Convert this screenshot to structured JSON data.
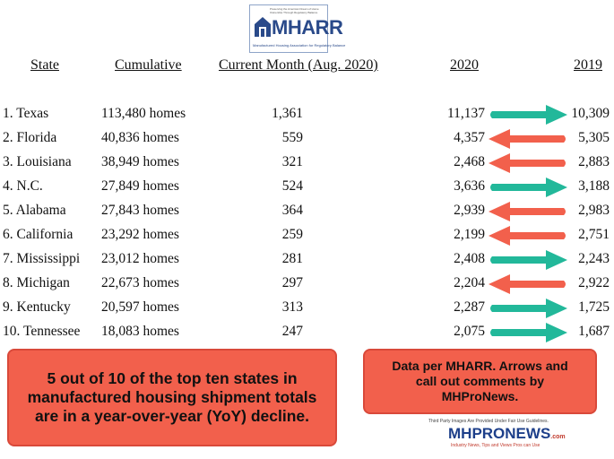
{
  "header": {
    "tagline": "Preserving the American Dream of Home Ownership Through Regulatory Balance",
    "logo": "MHARR",
    "org": "Manufactured Housing Association for Regulatory Balance"
  },
  "table": {
    "columns": [
      "State",
      "Cumulative",
      "Current Month (Aug. 2020)",
      "2020",
      "2019"
    ],
    "rows": [
      [
        "1. Texas",
        "113,480 homes",
        "1,361",
        "11,137",
        "10,309"
      ],
      [
        "2. Florida",
        "40,836 homes",
        "559",
        "4,357",
        "5,305"
      ],
      [
        "3. Louisiana",
        "38,949 homes",
        "321",
        "2,468",
        "2,883"
      ],
      [
        "4. N.C.",
        "27,849 homes",
        "524",
        "3,636",
        "3,188"
      ],
      [
        "5. Alabama",
        "27,843 homes",
        "364",
        "2,939",
        "2,983"
      ],
      [
        "6. California",
        "23,292 homes",
        "259",
        "2,199",
        "2,751"
      ],
      [
        "7. Mississippi",
        "23,012 homes",
        "281",
        "2,408",
        "2,243"
      ],
      [
        "8. Michigan",
        "22,673 homes",
        "297",
        "2,204",
        "2,922"
      ],
      [
        "9. Kentucky",
        "20,597 homes",
        "313",
        "2,287",
        "1,725"
      ],
      [
        "10. Tennessee",
        "18,083 homes",
        "247",
        "2,075",
        "1,687"
      ]
    ]
  },
  "callouts": [
    "5 out of 10 of the top ten states in manufactured housing shipment totals are in a year-over-year (YoY) decline.",
    "Data per MHARR. Arrows and call out comments by MHProNews."
  ],
  "footer": {
    "notice": "Third Party Images Are Provided Under Fair Use Guidelines.",
    "logo": "MHPRONEWS",
    "logo_suffix": ".com",
    "tagline": "Industry News, Tips and Views Pros can Use"
  }
}
